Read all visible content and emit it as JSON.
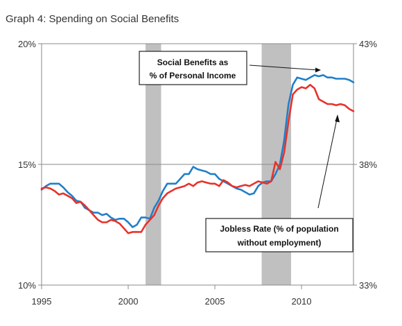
{
  "chart_data": {
    "type": "line",
    "title": "Graph 4: Spending on Social Benefits",
    "grid": true,
    "x_ticks": [
      "1995",
      "2000",
      "2005",
      "2010"
    ],
    "xlim": [
      1995,
      2013
    ],
    "y_left": {
      "ticks": [
        "10%",
        "15%",
        "20%"
      ],
      "range": [
        10,
        20
      ]
    },
    "y_right": {
      "ticks": [
        "33%",
        "38%",
        "43%"
      ],
      "range": [
        33,
        43
      ]
    },
    "shaded_periods": [
      [
        2001.0,
        2001.9
      ],
      [
        2007.7,
        2009.4
      ]
    ],
    "series": [
      {
        "axis": "left",
        "color": "#1f7fc9",
        "x": [
          1995.0,
          1995.25,
          1995.5,
          1995.75,
          1996.0,
          1996.25,
          1996.5,
          1996.75,
          1997.0,
          1997.25,
          1997.5,
          1997.75,
          1998.0,
          1998.25,
          1998.5,
          1998.75,
          1999.0,
          1999.25,
          1999.5,
          1999.75,
          2000.0,
          2000.25,
          2000.5,
          2000.75,
          2001.0,
          2001.25,
          2001.5,
          2001.75,
          2002.0,
          2002.25,
          2002.5,
          2002.75,
          2003.0,
          2003.25,
          2003.5,
          2003.75,
          2004.0,
          2004.25,
          2004.5,
          2004.75,
          2005.0,
          2005.25,
          2005.5,
          2005.75,
          2006.0,
          2006.25,
          2006.5,
          2006.75,
          2007.0,
          2007.25,
          2007.5,
          2007.75,
          2008.0,
          2008.25,
          2008.5,
          2008.75,
          2009.0,
          2009.25,
          2009.5,
          2009.75,
          2010.0,
          2010.25,
          2010.5,
          2010.75,
          2011.0,
          2011.25,
          2011.5,
          2011.75,
          2012.0,
          2012.25,
          2012.5,
          2012.75,
          2013.0
        ],
        "values": [
          13.95,
          14.1,
          14.2,
          14.2,
          14.2,
          14.05,
          13.85,
          13.7,
          13.5,
          13.45,
          13.2,
          13.1,
          13.0,
          13.0,
          12.9,
          12.95,
          12.8,
          12.7,
          12.75,
          12.75,
          12.6,
          12.4,
          12.5,
          12.8,
          12.8,
          12.75,
          13.2,
          13.5,
          13.9,
          14.2,
          14.2,
          14.2,
          14.4,
          14.6,
          14.6,
          14.9,
          14.8,
          14.75,
          14.7,
          14.6,
          14.6,
          14.4,
          14.3,
          14.2,
          14.1,
          14.0,
          13.95,
          13.85,
          13.75,
          13.8,
          14.1,
          14.25,
          14.3,
          14.3,
          14.6,
          15.0,
          16.0,
          17.5,
          18.3,
          18.6,
          18.55,
          18.5,
          18.6,
          18.7,
          18.65,
          18.7,
          18.6,
          18.6,
          18.55,
          18.55,
          18.55,
          18.5,
          18.4
        ]
      },
      {
        "axis": "right",
        "color": "#e8312a",
        "x": [
          1995.0,
          1995.25,
          1995.5,
          1995.75,
          1996.0,
          1996.25,
          1996.5,
          1996.75,
          1997.0,
          1997.25,
          1997.5,
          1997.75,
          1998.0,
          1998.25,
          1998.5,
          1998.75,
          1999.0,
          1999.25,
          1999.5,
          1999.75,
          2000.0,
          2000.25,
          2000.5,
          2000.75,
          2001.0,
          2001.25,
          2001.5,
          2001.75,
          2002.0,
          2002.25,
          2002.5,
          2002.75,
          2003.0,
          2003.25,
          2003.5,
          2003.75,
          2004.0,
          2004.25,
          2004.5,
          2004.75,
          2005.0,
          2005.25,
          2005.5,
          2005.75,
          2006.0,
          2006.25,
          2006.5,
          2006.75,
          2007.0,
          2007.25,
          2007.5,
          2007.75,
          2008.0,
          2008.25,
          2008.5,
          2008.75,
          2009.0,
          2009.25,
          2009.5,
          2009.75,
          2010.0,
          2010.25,
          2010.5,
          2010.75,
          2011.0,
          2011.25,
          2011.5,
          2011.75,
          2012.0,
          2012.25,
          2012.5,
          2012.75,
          2013.0
        ],
        "values": [
          37.0,
          37.05,
          37.0,
          36.9,
          36.75,
          36.8,
          36.7,
          36.6,
          36.4,
          36.45,
          36.3,
          36.1,
          35.9,
          35.7,
          35.6,
          35.6,
          35.7,
          35.65,
          35.55,
          35.35,
          35.15,
          35.2,
          35.2,
          35.2,
          35.5,
          35.7,
          35.9,
          36.3,
          36.6,
          36.8,
          36.9,
          37.0,
          37.05,
          37.1,
          37.2,
          37.1,
          37.25,
          37.3,
          37.25,
          37.2,
          37.2,
          37.1,
          37.35,
          37.25,
          37.1,
          37.05,
          37.1,
          37.15,
          37.1,
          37.2,
          37.3,
          37.25,
          37.2,
          37.3,
          38.1,
          37.8,
          38.5,
          39.8,
          40.9,
          41.1,
          41.2,
          41.15,
          41.3,
          41.15,
          40.7,
          40.6,
          40.5,
          40.5,
          40.45,
          40.5,
          40.45,
          40.3,
          40.2
        ]
      }
    ],
    "annotations": [
      {
        "lines": [
          "Social Benefits as",
          "% of Personal Income"
        ]
      },
      {
        "lines": [
          "Jobless Rate (% of population",
          "without employment)"
        ]
      }
    ]
  }
}
